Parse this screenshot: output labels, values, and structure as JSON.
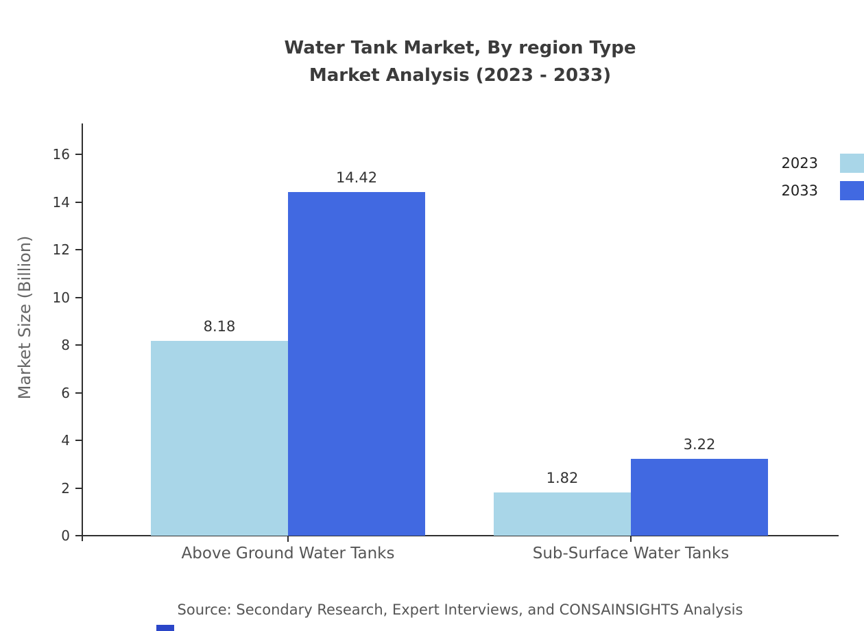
{
  "title": {
    "line1": "Water Tank Market, By region Type",
    "line2": "Market Analysis (2023 - 2033)"
  },
  "chart_data": {
    "type": "bar",
    "title": "Water Tank Market, By region Type Market Analysis (2023 - 2033)",
    "categories": [
      "Above Ground Water Tanks",
      "Sub-Surface Water Tanks"
    ],
    "series": [
      {
        "name": "2023",
        "color": "#A9D6E8",
        "values": [
          8.18,
          1.82
        ]
      },
      {
        "name": "2033",
        "color": "#4169E1",
        "values": [
          14.42,
          3.22
        ]
      }
    ],
    "xlabel": "",
    "ylabel": "Market Size (Billion)",
    "ylim": [
      0,
      17.3
    ],
    "yticks": [
      0,
      2,
      4,
      6,
      8,
      10,
      12,
      14,
      16
    ],
    "grid": false,
    "legend_position": "top-right",
    "value_labels": true
  },
  "source": "Source: Secondary Research, Expert Interviews, and CONSAINSIGHTS Analysis"
}
